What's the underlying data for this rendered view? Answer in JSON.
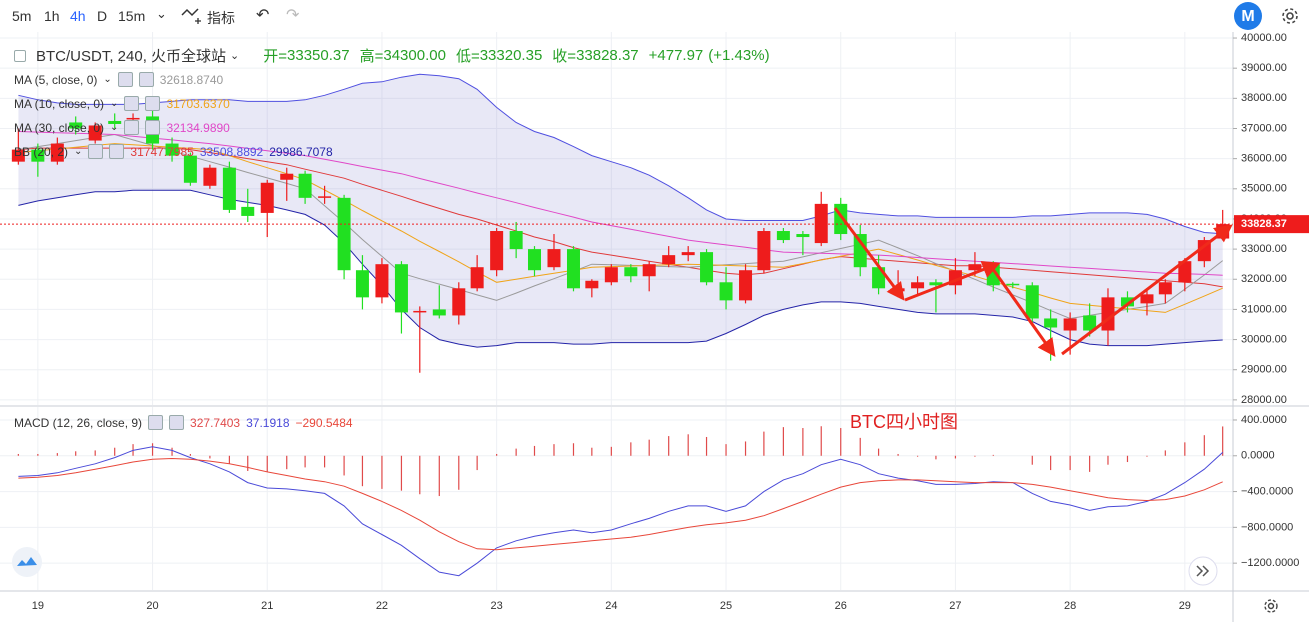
{
  "toolbar": {
    "intervals": [
      "5m",
      "1h",
      "4h",
      "D",
      "15m"
    ],
    "active": "4h",
    "indicators": "指标"
  },
  "chart_data": {
    "type": "candlestick",
    "symbol": "BTC/USDT, 240, 火币全球站",
    "ohlc_labels": [
      "开=",
      "高=",
      "低=",
      "收="
    ],
    "last_printed": {
      "open": "33350.37",
      "high": "34300.00",
      "low": "33320.35",
      "close": "33828.37"
    },
    "change": {
      "value": 477.97,
      "label": "+477.97"
    },
    "change_pct": {
      "value": 1.43,
      "label": "(+1.43%)"
    },
    "annotation": "BTC四小时图",
    "up_color": "#ee1c1c",
    "down_color": "#21e021",
    "xlim": [
      18.67,
      29.42
    ],
    "xticks": [
      19,
      20,
      21,
      22,
      23,
      24,
      25,
      26,
      27,
      28,
      29
    ],
    "ylim": [
      27830,
      40200
    ],
    "yticks": [
      {
        "value": 40000,
        "label": "40000.00"
      },
      {
        "value": 39000,
        "label": "39000.00"
      },
      {
        "value": 38000,
        "label": "38000.00"
      },
      {
        "value": 37000,
        "label": "37000.00"
      },
      {
        "value": 36000,
        "label": "36000.00"
      },
      {
        "value": 35000,
        "label": "35000.00"
      },
      {
        "value": 34000,
        "label": "34000.00"
      },
      {
        "value": 33000,
        "label": "33000.00"
      },
      {
        "value": 32000,
        "label": "32000.00"
      },
      {
        "value": 31000,
        "label": "31000.00"
      },
      {
        "value": 30000,
        "label": "30000.00"
      },
      {
        "value": 29000,
        "label": "29000.00"
      },
      {
        "value": 28000,
        "label": "28000.00"
      }
    ],
    "grid": true,
    "x": [
      18.83,
      19,
      19.17,
      19.33,
      19.5,
      19.67,
      19.83,
      20,
      20.17,
      20.33,
      20.5,
      20.67,
      20.83,
      21,
      21.17,
      21.33,
      21.5,
      21.67,
      21.83,
      22,
      22.17,
      22.33,
      22.5,
      22.67,
      22.83,
      23,
      23.17,
      23.33,
      23.5,
      23.67,
      23.83,
      24,
      24.17,
      24.33,
      24.5,
      24.67,
      24.83,
      25,
      25.17,
      25.33,
      25.5,
      25.67,
      25.83,
      26,
      26.17,
      26.33,
      26.5,
      26.67,
      26.83,
      27,
      27.17,
      27.33,
      27.5,
      27.67,
      27.83,
      28,
      28.17,
      28.33,
      28.5,
      28.67,
      28.83,
      29,
      29.17,
      29.33
    ],
    "open": [
      35900,
      36300,
      35900,
      37200,
      36600,
      37250,
      37300,
      37400,
      36500,
      36100,
      35100,
      35700,
      34400,
      34200,
      35300,
      35500,
      34700,
      34700,
      32300,
      31400,
      32500,
      30900,
      31000,
      30800,
      31700,
      32300,
      33600,
      33000,
      32400,
      33000,
      31700,
      31900,
      32400,
      32100,
      32500,
      32800,
      32900,
      31900,
      31300,
      32300,
      33600,
      33500,
      33200,
      34500,
      33500,
      32400,
      31600,
      31700,
      31900,
      31800,
      32300,
      32500,
      31850,
      31800,
      30700,
      30300,
      30800,
      30300,
      31400,
      31200,
      31500,
      31900,
      32600,
      33350.37
    ],
    "high": [
      37000,
      36500,
      36700,
      37400,
      37200,
      37500,
      37500,
      37700,
      36700,
      36200,
      35800,
      35900,
      35000,
      35300,
      35700,
      35600,
      35100,
      34800,
      32800,
      32700,
      32600,
      31100,
      31800,
      31900,
      32800,
      33700,
      33900,
      33100,
      33500,
      33100,
      32000,
      32500,
      32500,
      32600,
      33100,
      33100,
      33000,
      32400,
      32500,
      33700,
      33700,
      33600,
      34900,
      34700,
      33800,
      32800,
      32300,
      32100,
      32000,
      32700,
      32900,
      32600,
      31900,
      31900,
      31000,
      30900,
      31200,
      31700,
      31600,
      31700,
      32000,
      32700,
      33400,
      34300
    ],
    "low": [
      35800,
      35400,
      35800,
      36800,
      36500,
      37000,
      36900,
      36300,
      35900,
      35100,
      35000,
      34200,
      33900,
      33400,
      34600,
      34500,
      34500,
      32000,
      31000,
      31200,
      30200,
      28900,
      30700,
      30500,
      31600,
      32100,
      32700,
      32100,
      32300,
      31600,
      31400,
      31800,
      31900,
      31600,
      32400,
      32600,
      31800,
      31000,
      31200,
      32200,
      33200,
      32800,
      33100,
      33300,
      32100,
      31500,
      31400,
      31500,
      30900,
      31500,
      32100,
      31600,
      31700,
      30500,
      29300,
      29500,
      30100,
      29800,
      30900,
      30800,
      31200,
      31600,
      32400,
      33320.35
    ],
    "close": [
      36300,
      35900,
      36500,
      37000,
      37100,
      37150,
      37350,
      36500,
      36100,
      35200,
      35700,
      34300,
      34100,
      35200,
      35500,
      34700,
      34750,
      32300,
      31400,
      32500,
      30900,
      30950,
      30800,
      31700,
      32400,
      33600,
      33000,
      32300,
      33000,
      31700,
      31950,
      32400,
      32100,
      32500,
      32800,
      32900,
      31900,
      31300,
      32300,
      33600,
      33300,
      33400,
      34500,
      33500,
      32400,
      31700,
      31700,
      31900,
      31800,
      32300,
      32500,
      31800,
      31800,
      30700,
      30400,
      30700,
      30300,
      31400,
      31100,
      31500,
      31900,
      32600,
      33300,
      33828.37
    ],
    "overlays": [
      {
        "name": "MA (5, close, 0)",
        "color": "#9a9a9a",
        "legend_label": "32618.8740",
        "values": [
          36300,
          36400,
          36500,
          36600,
          36700,
          36800,
          36620,
          36440,
          36260,
          36080,
          35900,
          35720,
          35540,
          35360,
          35180,
          35000,
          34440,
          33880,
          33320,
          32760,
          32200,
          32020,
          31840,
          31660,
          31480,
          31300,
          31540,
          31780,
          32020,
          32260,
          32500,
          32480,
          32460,
          32440,
          32420,
          32400,
          32440,
          32480,
          32520,
          32560,
          32600,
          32740,
          32880,
          33020,
          33160,
          33300,
          33040,
          32780,
          32520,
          32260,
          32000,
          31740,
          31480,
          31220,
          30960,
          30700,
          30800,
          30900,
          31000,
          31100,
          31200,
          31670,
          32140,
          32618.874
        ]
      },
      {
        "name": "MA (10, close, 0)",
        "color": "#f0a418",
        "legend_label": "31703.6370",
        "values": [
          36200,
          36260,
          36320,
          36380,
          36440,
          36500,
          36460,
          36420,
          36380,
          36340,
          36300,
          36100,
          35900,
          35700,
          35500,
          35300,
          34960,
          34620,
          34280,
          33940,
          33600,
          33260,
          32920,
          32580,
          32240,
          31900,
          32000,
          32100,
          32200,
          32300,
          32400,
          32420,
          32440,
          32460,
          32480,
          32500,
          32480,
          32460,
          32440,
          32420,
          32400,
          32520,
          32640,
          32760,
          32880,
          33000,
          32820,
          32640,
          32460,
          32280,
          32100,
          31920,
          31740,
          31560,
          31380,
          31200,
          31140,
          31080,
          31020,
          30960,
          30900,
          31170,
          31440,
          31703.637
        ]
      },
      {
        "name": "MA (30, close, 0)",
        "color": "#e048c8",
        "legend_label": "32134.9890",
        "values": [
          36900,
          36880,
          36860,
          36840,
          36820,
          36800,
          36740,
          36680,
          36620,
          36560,
          36500,
          36420,
          36340,
          36260,
          36180,
          36100,
          35980,
          35860,
          35740,
          35620,
          35500,
          35340,
          35180,
          35020,
          34860,
          34700,
          34540,
          34380,
          34220,
          34060,
          33900,
          33780,
          33660,
          33540,
          33420,
          33300,
          33220,
          33140,
          33060,
          32980,
          32900,
          32880,
          32860,
          32840,
          32820,
          32800,
          32760,
          32720,
          32680,
          32640,
          32600,
          32560,
          32520,
          32480,
          32440,
          32400,
          32360,
          32320,
          32280,
          32240,
          32200,
          32180,
          32160,
          32134.989
        ]
      }
    ],
    "bands": {
      "name": "BB (20, 2)",
      "fill": "rgba(120,120,200,0.17)",
      "basis": {
        "color": "#e03a3a",
        "legend_label": "31747.7985",
        "values": [
          36300,
          36350,
          36350,
          36350,
          36350,
          36350,
          36350,
          36350,
          36350,
          36300,
          36200,
          36100,
          36000,
          35900,
          35800,
          35650,
          35500,
          35350,
          35150,
          34950,
          34750,
          34550,
          34350,
          34150,
          34000,
          33800,
          33600,
          33400,
          33250,
          33050,
          32900,
          32800,
          32700,
          32600,
          32500,
          32400,
          32300,
          32200,
          32150,
          32200,
          32350,
          32500,
          32650,
          32750,
          32700,
          32650,
          32600,
          32550,
          32500,
          32450,
          32450,
          32400,
          32350,
          32300,
          32250,
          32200,
          32150,
          32100,
          32050,
          32000,
          31950,
          31900,
          31850,
          31747.7985
        ]
      },
      "upper": {
        "color": "#4f4fe0",
        "legend_label": "33508.8892",
        "values": [
          38100,
          37950,
          37850,
          37800,
          37800,
          37800,
          37800,
          37850,
          37900,
          37950,
          37950,
          37950,
          37900,
          37900,
          37900,
          37950,
          38100,
          38300,
          38500,
          38550,
          38700,
          38800,
          38750,
          38650,
          38300,
          37700,
          37200,
          36900,
          36700,
          36400,
          36100,
          35900,
          35700,
          35450,
          35100,
          34700,
          34300,
          34000,
          33950,
          33950,
          33950,
          33950,
          34100,
          34300,
          34200,
          34150,
          34100,
          34100,
          34050,
          34050,
          34050,
          34050,
          34050,
          34100,
          34100,
          34150,
          34200,
          34200,
          34200,
          34150,
          34000,
          33750,
          33550,
          33508.8892
        ]
      },
      "lower": {
        "color": "#2424a8",
        "legend_label": "29986.7078",
        "values": [
          34450,
          34600,
          34700,
          34800,
          34900,
          34900,
          34950,
          34950,
          34950,
          34950,
          34800,
          34650,
          34550,
          34450,
          34300,
          34150,
          33800,
          33200,
          32500,
          31800,
          31000,
          30400,
          30000,
          29850,
          29750,
          29800,
          29900,
          29900,
          29900,
          29850,
          29850,
          29900,
          29900,
          29900,
          29900,
          29900,
          29950,
          30200,
          30500,
          30800,
          31000,
          31150,
          31250,
          31250,
          31200,
          31100,
          31000,
          30900,
          30850,
          30850,
          30850,
          30800,
          30750,
          30600,
          30300,
          30000,
          29850,
          29800,
          29800,
          29800,
          29850,
          29900,
          29950,
          29986.7078
        ]
      }
    },
    "macd": {
      "name": "MACD (12, 26, close, 9)",
      "ylim": [
        -1500,
        545
      ],
      "yticks": [
        {
          "value": 400,
          "label": "400.0000"
        },
        {
          "value": 0,
          "label": "0.0000"
        },
        {
          "value": -400,
          "label": "−400.0000"
        },
        {
          "value": -800,
          "label": "−800.0000"
        },
        {
          "value": -1200,
          "label": "−1200.0000"
        }
      ],
      "histogram": {
        "color": "#e04a4a",
        "values": [
          20,
          20,
          30,
          50,
          60,
          90,
          130,
          140,
          90,
          20,
          -30,
          -90,
          -170,
          -180,
          -150,
          -130,
          -130,
          -220,
          -340,
          -370,
          -390,
          -430,
          -450,
          -380,
          -160,
          20,
          80,
          110,
          130,
          140,
          90,
          100,
          150,
          180,
          220,
          240,
          210,
          130,
          160,
          270,
          320,
          310,
          330,
          310,
          200,
          80,
          20,
          -10,
          -40,
          -30,
          -10,
          10,
          0,
          -100,
          -160,
          -160,
          -180,
          -100,
          -70,
          -10,
          60,
          150,
          230,
          327.7403
        ]
      },
      "macd": {
        "color": "#4a4ad8",
        "values": [
          -230,
          -220,
          -190,
          -140,
          -90,
          -20,
          60,
          100,
          60,
          -20,
          -90,
          -180,
          -300,
          -360,
          -370,
          -390,
          -420,
          -560,
          -760,
          -880,
          -1000,
          -1150,
          -1300,
          -1340,
          -1200,
          -1030,
          -950,
          -900,
          -860,
          -830,
          -860,
          -830,
          -760,
          -700,
          -620,
          -560,
          -560,
          -620,
          -560,
          -400,
          -270,
          -200,
          -100,
          -40,
          -100,
          -200,
          -250,
          -280,
          -320,
          -320,
          -310,
          -290,
          -300,
          -420,
          -510,
          -550,
          -610,
          -570,
          -560,
          -510,
          -430,
          -300,
          -150,
          37.1918
        ]
      },
      "signal": {
        "color": "#e8473a",
        "legend_label": "−290.5484",
        "values": [
          -250,
          -240,
          -220,
          -190,
          -150,
          -110,
          -70,
          -40,
          -30,
          -40,
          -60,
          -90,
          -130,
          -180,
          -220,
          -260,
          -290,
          -340,
          -420,
          -510,
          -610,
          -720,
          -850,
          -960,
          -1040,
          -1050,
          -1030,
          -1010,
          -990,
          -970,
          -950,
          -930,
          -910,
          -880,
          -840,
          -800,
          -770,
          -750,
          -720,
          -670,
          -590,
          -510,
          -430,
          -350,
          -300,
          -280,
          -270,
          -270,
          -280,
          -290,
          -300,
          -300,
          -300,
          -320,
          -350,
          -390,
          -430,
          -470,
          -490,
          -500,
          -490,
          -450,
          -380,
          -290.5484
        ]
      }
    }
  }
}
